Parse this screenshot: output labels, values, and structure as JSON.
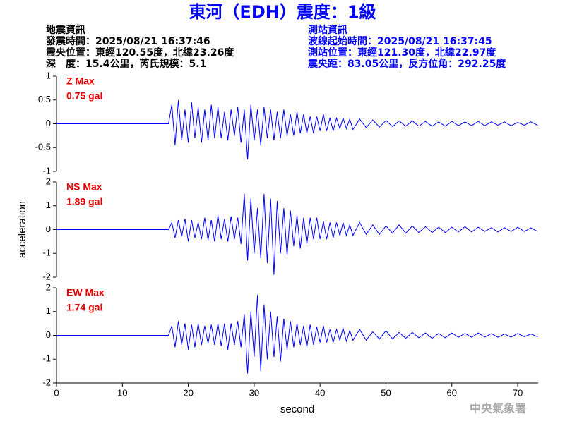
{
  "title": "東河（EDH）震度：1級",
  "header": {
    "left": [
      "地震資訊",
      "發震時間：2025/08/21 16:37:46",
      "震央位置：東經120.55度，北緯23.26度",
      "深　度：15.4公里，芮氏規模：5.1"
    ],
    "right": [
      "測站資訊",
      "波線起始時間：2025/08/21 16:37:45",
      "測站位置：東經121.30度，北緯22.97度",
      "震央距：83.05公里，反方位角：292.25度"
    ]
  },
  "watermark": "中央氣象署",
  "chart_data": [
    {
      "type": "line",
      "annotations": [
        "Z Max",
        "0.75 gal"
      ],
      "x": [
        0,
        17,
        17.5,
        18,
        18.5,
        19,
        19.5,
        20,
        20.5,
        21,
        21.5,
        22,
        22.5,
        23,
        23.5,
        24,
        24.5,
        25,
        25.5,
        26,
        26.5,
        27,
        27.5,
        28,
        28.5,
        29,
        29.5,
        30,
        30.5,
        31,
        31.5,
        32,
        32.5,
        33,
        33.5,
        34,
        34.5,
        35,
        35.5,
        36,
        36.5,
        37,
        37.5,
        38,
        38.5,
        39,
        39.5,
        40,
        40.5,
        41,
        41.5,
        42,
        42.5,
        43,
        43.5,
        44,
        44.5,
        45,
        46,
        47,
        48,
        49,
        50,
        51,
        52,
        53,
        54,
        55,
        56,
        57,
        58,
        59,
        60,
        61,
        62,
        63,
        64,
        65,
        66,
        67,
        68,
        69,
        70,
        71,
        72,
        73
      ],
      "values": [
        0,
        0,
        0.4,
        -0.45,
        0.5,
        -0.35,
        0.3,
        -0.4,
        0.45,
        -0.3,
        0.35,
        -0.4,
        0.3,
        -0.35,
        0.4,
        -0.3,
        0.35,
        -0.3,
        0.25,
        -0.35,
        0.3,
        -0.25,
        0.35,
        -0.4,
        0.3,
        -0.75,
        0.4,
        -0.35,
        0.3,
        -0.45,
        0.35,
        -0.3,
        0.3,
        -0.35,
        0.25,
        -0.3,
        0.3,
        -0.25,
        0.2,
        -0.25,
        0.25,
        -0.2,
        0.2,
        -0.2,
        0.15,
        -0.2,
        0.15,
        -0.15,
        0.2,
        -0.15,
        0.12,
        -0.15,
        0.12,
        -0.1,
        0.12,
        -0.1,
        0.1,
        -0.12,
        0.1,
        -0.08,
        0.08,
        -0.07,
        0.07,
        -0.06,
        0.06,
        -0.05,
        0.06,
        -0.05,
        0.05,
        -0.05,
        0.04,
        -0.05,
        0.05,
        -0.04,
        0.04,
        -0.04,
        0.05,
        -0.04,
        0.04,
        -0.03,
        0.04,
        -0.04,
        0.03,
        -0.03,
        0.04,
        -0.03
      ],
      "color": "#0000ff",
      "xlim": [
        0,
        73.1
      ],
      "ylim": [
        -1,
        1
      ],
      "yticks": [
        -1,
        -0.5,
        0,
        0.5,
        1
      ]
    },
    {
      "type": "line",
      "annotations": [
        "NS Max",
        "1.89 gal"
      ],
      "ylabel": "acceleration",
      "x": [
        0,
        17,
        17.5,
        18,
        18.5,
        19,
        19.5,
        20,
        20.5,
        21,
        21.5,
        22,
        22.5,
        23,
        23.5,
        24,
        24.5,
        25,
        25.5,
        26,
        26.5,
        27,
        27.5,
        28,
        28.5,
        29,
        29.5,
        30,
        30.5,
        31,
        31.5,
        32,
        32.5,
        33,
        33.5,
        34,
        34.5,
        35,
        35.5,
        36,
        36.5,
        37,
        37.5,
        38,
        38.5,
        39,
        39.5,
        40,
        40.5,
        41,
        41.5,
        42,
        42.5,
        43,
        43.5,
        44,
        44.5,
        45,
        46,
        47,
        48,
        49,
        50,
        51,
        52,
        53,
        54,
        55,
        56,
        57,
        58,
        59,
        60,
        61,
        62,
        63,
        64,
        65,
        66,
        67,
        68,
        69,
        70,
        71,
        72,
        73
      ],
      "values": [
        0,
        0,
        0.3,
        -0.35,
        0.4,
        -0.3,
        0.45,
        -0.5,
        0.4,
        -0.35,
        0.3,
        -0.4,
        0.5,
        -0.45,
        0.4,
        -0.5,
        0.6,
        -0.4,
        0.45,
        -0.5,
        0.55,
        -0.4,
        0.5,
        -0.6,
        1.5,
        -1.3,
        1.3,
        -1.0,
        0.9,
        -1.2,
        1.5,
        -1.4,
        1.3,
        -1.9,
        1.2,
        -1.0,
        0.9,
        -1.1,
        0.8,
        -0.7,
        0.6,
        -0.8,
        0.5,
        -0.6,
        0.5,
        -0.4,
        0.5,
        -0.4,
        0.35,
        -0.4,
        0.3,
        -0.35,
        0.3,
        -0.25,
        0.3,
        -0.25,
        0.2,
        -0.25,
        0.3,
        -0.2,
        0.2,
        -0.2,
        0.15,
        -0.15,
        0.2,
        -0.15,
        0.15,
        -0.12,
        0.12,
        -0.12,
        0.1,
        -0.12,
        0.1,
        -0.1,
        0.12,
        -0.1,
        0.1,
        -0.08,
        0.08,
        -0.1,
        0.08,
        -0.08,
        0.1,
        -0.08,
        0.07,
        -0.08
      ],
      "color": "#0000ff",
      "xlim": [
        0,
        73.1
      ],
      "ylim": [
        -2,
        2
      ],
      "yticks": [
        -2,
        -1,
        0,
        1,
        2
      ]
    },
    {
      "type": "line",
      "annotations": [
        "EW Max",
        "1.74 gal"
      ],
      "xlabel": "second",
      "x": [
        0,
        17,
        17.5,
        18,
        18.5,
        19,
        19.5,
        20,
        20.5,
        21,
        21.5,
        22,
        22.5,
        23,
        23.5,
        24,
        24.5,
        25,
        25.5,
        26,
        26.5,
        27,
        27.5,
        28,
        28.5,
        29,
        29.5,
        30,
        30.5,
        31,
        31.5,
        32,
        32.5,
        33,
        33.5,
        34,
        34.5,
        35,
        35.5,
        36,
        36.5,
        37,
        37.5,
        38,
        38.5,
        39,
        39.5,
        40,
        40.5,
        41,
        41.5,
        42,
        42.5,
        43,
        43.5,
        44,
        44.5,
        45,
        46,
        47,
        48,
        49,
        50,
        51,
        52,
        53,
        54,
        55,
        56,
        57,
        58,
        59,
        60,
        61,
        62,
        63,
        64,
        65,
        66,
        67,
        68,
        69,
        70,
        71,
        72,
        73
      ],
      "values": [
        0,
        0,
        0.4,
        -0.5,
        0.6,
        -0.4,
        0.5,
        -0.6,
        0.45,
        -0.5,
        0.5,
        -0.4,
        0.4,
        -0.35,
        0.45,
        -0.4,
        0.5,
        -0.45,
        0.5,
        -0.6,
        0.5,
        -0.4,
        0.6,
        -0.5,
        0.9,
        -1.6,
        1.0,
        -0.9,
        1.7,
        -1.5,
        1.3,
        -1.0,
        1.0,
        -0.9,
        0.8,
        -1.1,
        0.7,
        -0.6,
        0.6,
        -0.5,
        0.5,
        -0.4,
        0.4,
        -0.5,
        0.45,
        -0.4,
        0.35,
        -0.3,
        0.4,
        -0.3,
        0.25,
        -0.3,
        0.25,
        -0.2,
        0.3,
        -0.25,
        0.2,
        -0.2,
        0.25,
        -0.2,
        0.15,
        -0.15,
        0.2,
        -0.15,
        0.12,
        -0.12,
        0.12,
        -0.1,
        0.1,
        -0.12,
        0.08,
        -0.1,
        0.1,
        -0.08,
        0.08,
        -0.08,
        0.1,
        -0.07,
        0.07,
        -0.08,
        0.06,
        -0.07,
        0.08,
        -0.06,
        0.06,
        -0.06
      ],
      "color": "#0000ff",
      "xlim": [
        0,
        73.1
      ],
      "ylim": [
        -2,
        2
      ],
      "yticks": [
        -2,
        -1,
        0,
        1,
        2
      ],
      "xticks": [
        0,
        10,
        20,
        30,
        40,
        50,
        60,
        70
      ]
    }
  ]
}
